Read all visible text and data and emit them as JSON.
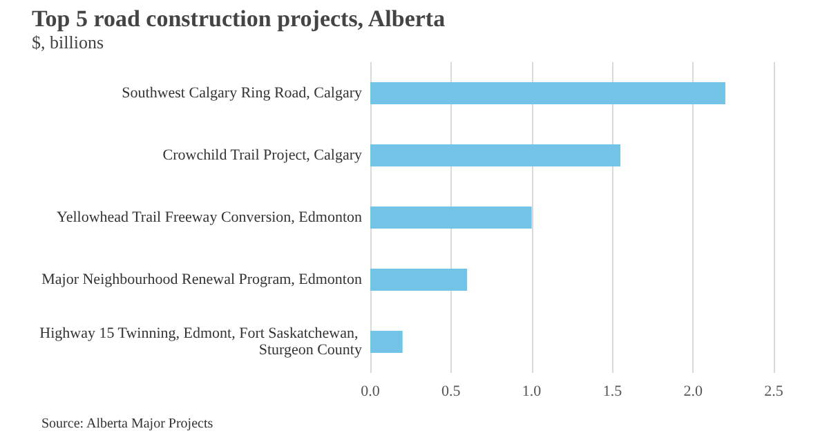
{
  "chart_data": {
    "type": "bar",
    "orientation": "horizontal",
    "title": "Top 5 road construction projects, Alberta",
    "subtitle": "$, billions",
    "categories": [
      "Southwest Calgary Ring Road, Calgary",
      "Crowchild Trail Project, Calgary",
      "Yellowhead Trail Freeway Conversion, Edmonton",
      "Major Neighbourhood Renewal Program, Edmonton",
      "Highway 15 Twinning, Edmont, Fort Saskatchewan, Sturgeon County"
    ],
    "values": [
      2.2,
      1.55,
      1.0,
      0.6,
      0.2
    ],
    "color": "#72c3e6",
    "xlim": [
      0,
      2.5
    ],
    "xticks": [
      {
        "value": 0,
        "label": "0.0"
      },
      0.5,
      {
        "value": 1,
        "label": "1.0"
      },
      1.5,
      {
        "value": 2,
        "label": "2.0"
      },
      2.5
    ],
    "grid": "x",
    "annotations": [
      "Source: Alberta Major Projects"
    ]
  }
}
